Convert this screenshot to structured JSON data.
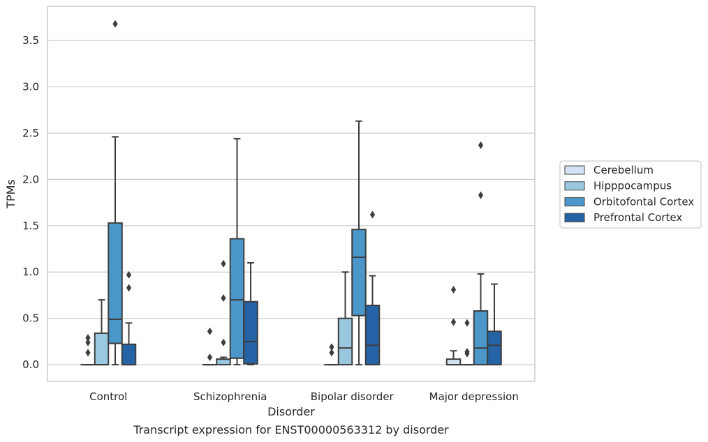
{
  "chart_data": {
    "type": "box",
    "title": "Transcript expression for ENST00000563312 by disorder",
    "xlabel": "Disorder",
    "ylabel": "TPMs",
    "ylim": [
      -0.18,
      3.87
    ],
    "yticks": [
      0.0,
      0.5,
      1.0,
      1.5,
      2.0,
      2.5,
      3.0,
      3.5
    ],
    "ytick_labels": [
      "0.0",
      "0.5",
      "1.0",
      "1.5",
      "2.0",
      "2.5",
      "3.0",
      "3.5"
    ],
    "grid": "y",
    "legend_position": "right",
    "categories": [
      "Control",
      "Schizophrenia",
      "Bipolar disorder",
      "Major depression"
    ],
    "series": [
      {
        "name": "Cerebellum",
        "color": "#d2e3f3",
        "boxes": [
          {
            "min": 0.0,
            "q1": 0.0,
            "median": 0.0,
            "q3": 0.0,
            "max": 0.0,
            "outliers": [
              0.29,
              0.24,
              0.13
            ]
          },
          {
            "min": 0.0,
            "q1": 0.0,
            "median": 0.0,
            "q3": 0.0,
            "max": 0.0,
            "outliers": [
              0.36,
              0.08
            ]
          },
          {
            "min": 0.0,
            "q1": 0.0,
            "median": 0.0,
            "q3": 0.0,
            "max": 0.0,
            "outliers": [
              0.19,
              0.13
            ]
          },
          {
            "min": 0.0,
            "q1": 0.0,
            "median": 0.0,
            "q3": 0.06,
            "max": 0.15,
            "outliers": [
              0.81,
              0.46
            ]
          }
        ]
      },
      {
        "name": "Hipppocampus",
        "color": "#9ac8e0",
        "boxes": [
          {
            "min": 0.0,
            "q1": 0.0,
            "median": 0.0,
            "q3": 0.34,
            "max": 0.7,
            "outliers": []
          },
          {
            "min": 0.0,
            "q1": 0.0,
            "median": 0.06,
            "q3": 0.06,
            "max": 0.08,
            "outliers": [
              1.09,
              0.72,
              0.24
            ]
          },
          {
            "min": 0.0,
            "q1": 0.0,
            "median": 0.18,
            "q3": 0.5,
            "max": 1.0,
            "outliers": []
          },
          {
            "min": 0.0,
            "q1": 0.0,
            "median": 0.0,
            "q3": 0.0,
            "max": 0.0,
            "outliers": [
              0.45,
              0.14,
              0.12
            ]
          }
        ]
      },
      {
        "name": "Orbitofontal Cortex",
        "color": "#4b97c9",
        "boxes": [
          {
            "min": 0.0,
            "q1": 0.23,
            "median": 0.49,
            "q3": 1.53,
            "max": 2.46,
            "outliers": [
              3.68
            ]
          },
          {
            "min": 0.0,
            "q1": 0.07,
            "median": 0.7,
            "q3": 1.36,
            "max": 2.44,
            "outliers": []
          },
          {
            "min": 0.0,
            "q1": 0.53,
            "median": 1.16,
            "q3": 1.46,
            "max": 2.63,
            "outliers": []
          },
          {
            "min": 0.0,
            "q1": 0.0,
            "median": 0.18,
            "q3": 0.58,
            "max": 0.98,
            "outliers": [
              2.37,
              1.83
            ]
          }
        ]
      },
      {
        "name": "Prefrontal Cortex",
        "color": "#2464a6",
        "boxes": [
          {
            "min": 0.0,
            "q1": 0.0,
            "median": 0.0,
            "q3": 0.22,
            "max": 0.45,
            "outliers": [
              0.97,
              0.83
            ]
          },
          {
            "min": 0.0,
            "q1": 0.01,
            "median": 0.25,
            "q3": 0.68,
            "max": 1.1,
            "outliers": []
          },
          {
            "min": 0.0,
            "q1": 0.0,
            "median": 0.21,
            "q3": 0.64,
            "max": 0.96,
            "outliers": [
              1.62
            ]
          },
          {
            "min": 0.0,
            "q1": 0.0,
            "median": 0.21,
            "q3": 0.36,
            "max": 0.87,
            "outliers": []
          }
        ]
      }
    ]
  }
}
